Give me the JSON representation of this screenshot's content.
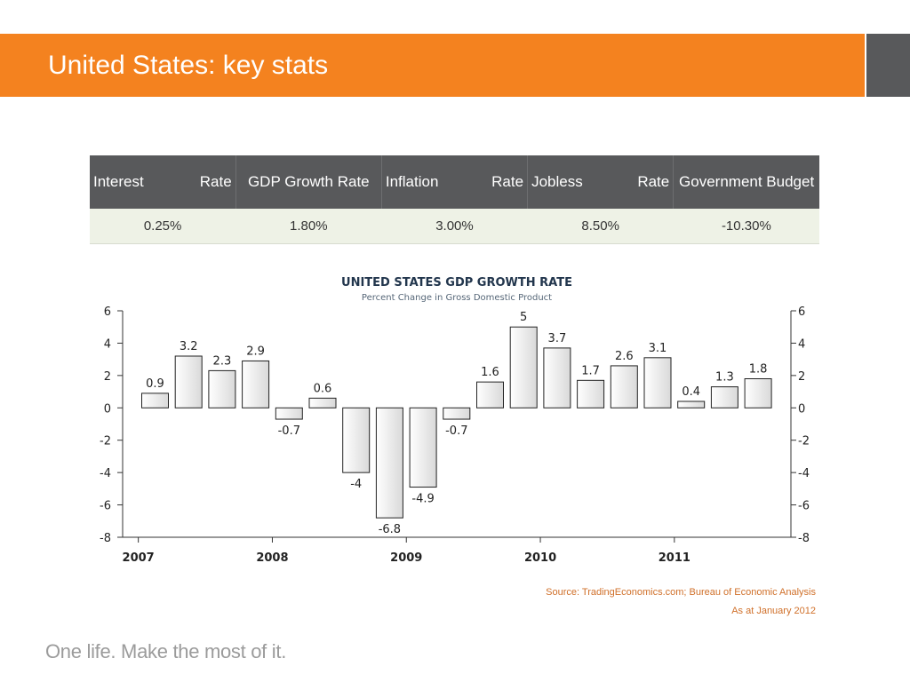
{
  "slide": {
    "title": "United States: key stats",
    "footer": "One life. Make the most of it.",
    "source_line1": "Source: TradingEconomics.com; Bureau of Economic Analysis",
    "source_line2": "As at January 2012"
  },
  "colors": {
    "accent": "#f4821f",
    "side_block": "#58595b",
    "table_header": "#58595b",
    "table_row": "#eef2e6"
  },
  "stats_table": {
    "headers": [
      {
        "left": "Interest",
        "right": "Rate"
      },
      {
        "text": "GDP Growth Rate"
      },
      {
        "left": "Inflation",
        "right": "Rate"
      },
      {
        "left": "Jobless",
        "right": "Rate"
      },
      {
        "text": "Government Budget"
      }
    ],
    "values": [
      "0.25%",
      "1.80%",
      "3.00%",
      "8.50%",
      "-10.30%"
    ]
  },
  "chart_data": {
    "type": "bar",
    "title": "UNITED STATES GDP GROWTH RATE",
    "subtitle": "Percent Change in Gross Domestic Product",
    "x_labels": [
      "2007",
      "2008",
      "2009",
      "2010",
      "2011"
    ],
    "x_label_positions": [
      -0.5,
      3.5,
      7.5,
      11.5,
      15.5
    ],
    "values": [
      0.9,
      3.2,
      2.3,
      2.9,
      -0.7,
      0.6,
      -4,
      -6.8,
      -4.9,
      -0.7,
      1.6,
      5,
      3.7,
      1.7,
      2.6,
      3.1,
      0.4,
      1.3,
      1.8
    ],
    "labels": [
      "0.9",
      "3.2",
      "2.3",
      "2.9",
      "-0.7",
      "0.6",
      "-4",
      "-6.8",
      "-4.9",
      "-0.7",
      "1.6",
      "5",
      "3.7",
      "1.7",
      "2.6",
      "3.1",
      "0.4",
      "1.3",
      "1.8"
    ],
    "ylim": [
      -8,
      6
    ],
    "yticks": [
      6,
      4,
      2,
      0,
      -2,
      -4,
      -6,
      -8
    ],
    "grid": false,
    "dual_y_axis": true
  }
}
